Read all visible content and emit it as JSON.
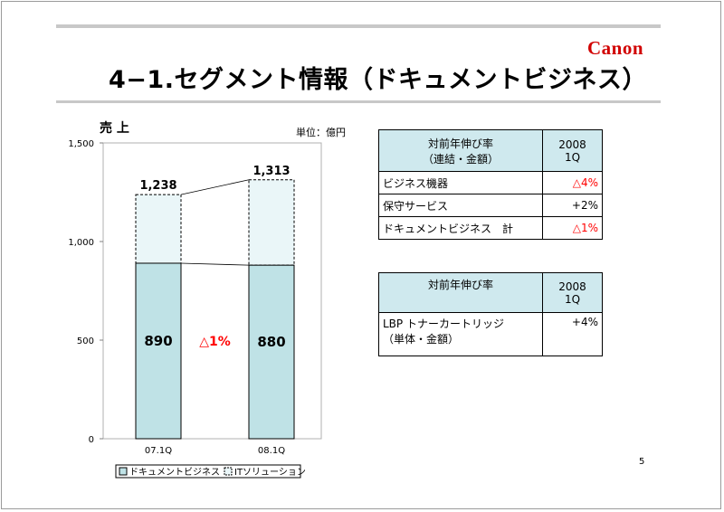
{
  "brand": {
    "logo_text": "Canon",
    "logo_color": "#d10000"
  },
  "slide": {
    "title": "4−1.セグメント情報（ドキュメントビジネス）",
    "page_number": "5"
  },
  "chart_data": {
    "type": "bar",
    "title": "売 上",
    "unit_label": "単位：億円",
    "categories": [
      "07.1Q",
      "08.1Q"
    ],
    "series": [
      {
        "name": "ドキュメントビジネス",
        "values": [
          890,
          880
        ],
        "color": "#bfe2e6"
      },
      {
        "name": "ITソリューション",
        "values": [
          348,
          433
        ],
        "color": "#eaf6f8"
      }
    ],
    "totals": [
      1238,
      1313
    ],
    "total_labels": [
      "1,238",
      "1,313"
    ],
    "bar_labels": [
      "890",
      "880"
    ],
    "growth_label": "△1%",
    "ylim": [
      0,
      1500
    ],
    "yticks": [
      0,
      500,
      1000,
      1500
    ],
    "ytick_labels": [
      "0",
      "500",
      "1,000",
      "1,500"
    ],
    "grid": false,
    "legend_position": "bottom-left"
  },
  "table1": {
    "header_left": [
      "対前年伸び率",
      "（連結・金額）"
    ],
    "header_right": [
      "2008",
      "1Q"
    ],
    "rows": [
      {
        "label": "ビジネス機器",
        "value": "△4%",
        "red": true
      },
      {
        "label": "保守サービス",
        "value": "+2%",
        "red": false
      },
      {
        "label": "ドキュメントビジネス　計",
        "value": "△1%",
        "red": true
      }
    ]
  },
  "table2": {
    "header_left": "対前年伸び率",
    "header_right": [
      "2008",
      "1Q"
    ],
    "row_label": [
      "LBP トナーカートリッジ",
      "（単体・金額）"
    ],
    "row_value": "+4%"
  },
  "colors": {
    "red": "#ff0000",
    "header_fill": "#cfe9ee"
  }
}
